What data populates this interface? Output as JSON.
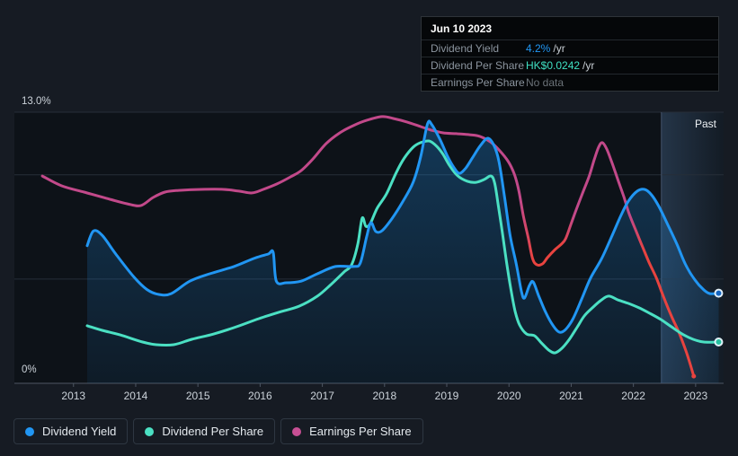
{
  "tooltip": {
    "date": "Jun 10 2023",
    "rows": [
      {
        "label": "Dividend Yield",
        "value": "4.2%",
        "suffix": "/yr",
        "color": "#2196f3"
      },
      {
        "label": "Dividend Per Share",
        "value": "HK$0.0242",
        "suffix": "/yr",
        "color": "#40e0c3"
      },
      {
        "label": "Earnings Per Share",
        "value": "No data",
        "suffix": "",
        "color": "#6b7278"
      }
    ]
  },
  "axis": {
    "y_max_label": "13.0%",
    "y_min_label": "0%",
    "x_ticks": [
      "2013",
      "2014",
      "2015",
      "2016",
      "2017",
      "2018",
      "2019",
      "2020",
      "2021",
      "2022",
      "2023"
    ],
    "past_label": "Past"
  },
  "legend": [
    {
      "label": "Dividend Yield",
      "color": "#2196f3"
    },
    {
      "label": "Dividend Per Share",
      "color": "#4be0c3"
    },
    {
      "label": "Earnings Per Share",
      "color": "#c74f94"
    }
  ],
  "chart_data": {
    "type": "line",
    "x_range": [
      2012.05,
      2023.45
    ],
    "ylim": [
      0,
      13
    ],
    "y_gridlines": [
      13,
      10,
      5,
      0
    ],
    "past_band_start": 2022.45,
    "series": [
      {
        "name": "Dividend Yield",
        "color": "#2196f3",
        "fill": true,
        "end_marker": true,
        "points": [
          [
            2013.22,
            6.6
          ],
          [
            2013.32,
            7.3
          ],
          [
            2013.46,
            7.1
          ],
          [
            2013.68,
            6.2
          ],
          [
            2013.97,
            5.1
          ],
          [
            2014.18,
            4.5
          ],
          [
            2014.37,
            4.26
          ],
          [
            2014.57,
            4.3
          ],
          [
            2014.87,
            4.9
          ],
          [
            2015.19,
            5.25
          ],
          [
            2015.58,
            5.6
          ],
          [
            2015.91,
            6.0
          ],
          [
            2016.13,
            6.2
          ],
          [
            2016.21,
            6.28
          ],
          [
            2016.26,
            4.9
          ],
          [
            2016.42,
            4.82
          ],
          [
            2016.66,
            4.9
          ],
          [
            2016.92,
            5.25
          ],
          [
            2017.21,
            5.6
          ],
          [
            2017.5,
            5.6
          ],
          [
            2017.61,
            5.77
          ],
          [
            2017.71,
            7.0
          ],
          [
            2017.78,
            7.7
          ],
          [
            2017.86,
            7.28
          ],
          [
            2017.96,
            7.32
          ],
          [
            2018.12,
            7.9
          ],
          [
            2018.29,
            8.7
          ],
          [
            2018.46,
            9.64
          ],
          [
            2018.58,
            10.85
          ],
          [
            2018.69,
            12.44
          ],
          [
            2018.76,
            12.4
          ],
          [
            2018.89,
            11.7
          ],
          [
            2019.01,
            10.9
          ],
          [
            2019.11,
            10.37
          ],
          [
            2019.2,
            10.07
          ],
          [
            2019.3,
            10.3
          ],
          [
            2019.41,
            10.8
          ],
          [
            2019.54,
            11.4
          ],
          [
            2019.66,
            11.75
          ],
          [
            2019.76,
            11.4
          ],
          [
            2019.84,
            10.63
          ],
          [
            2019.93,
            8.9
          ],
          [
            2020.02,
            7.06
          ],
          [
            2020.12,
            5.68
          ],
          [
            2020.2,
            4.4
          ],
          [
            2020.25,
            4.09
          ],
          [
            2020.33,
            4.7
          ],
          [
            2020.39,
            4.86
          ],
          [
            2020.48,
            4.18
          ],
          [
            2020.59,
            3.4
          ],
          [
            2020.71,
            2.76
          ],
          [
            2020.81,
            2.45
          ],
          [
            2020.91,
            2.58
          ],
          [
            2021.03,
            3.1
          ],
          [
            2021.17,
            4.05
          ],
          [
            2021.31,
            5.04
          ],
          [
            2021.49,
            5.98
          ],
          [
            2021.66,
            7.1
          ],
          [
            2021.8,
            8.05
          ],
          [
            2021.92,
            8.74
          ],
          [
            2022.06,
            9.21
          ],
          [
            2022.18,
            9.3
          ],
          [
            2022.29,
            9.04
          ],
          [
            2022.41,
            8.48
          ],
          [
            2022.55,
            7.62
          ],
          [
            2022.7,
            6.67
          ],
          [
            2022.84,
            5.68
          ],
          [
            2022.99,
            4.95
          ],
          [
            2023.13,
            4.48
          ],
          [
            2023.23,
            4.3
          ],
          [
            2023.37,
            4.32
          ]
        ]
      },
      {
        "name": "Dividend Per Share",
        "color": "#4be0c3",
        "fill": false,
        "end_marker": true,
        "points": [
          [
            2013.22,
            2.76
          ],
          [
            2013.46,
            2.54
          ],
          [
            2013.75,
            2.32
          ],
          [
            2014.11,
            1.98
          ],
          [
            2014.33,
            1.85
          ],
          [
            2014.61,
            1.85
          ],
          [
            2014.9,
            2.11
          ],
          [
            2015.26,
            2.37
          ],
          [
            2015.62,
            2.71
          ],
          [
            2015.98,
            3.1
          ],
          [
            2016.34,
            3.44
          ],
          [
            2016.63,
            3.7
          ],
          [
            2016.92,
            4.18
          ],
          [
            2017.14,
            4.74
          ],
          [
            2017.35,
            5.34
          ],
          [
            2017.47,
            5.68
          ],
          [
            2017.57,
            6.67
          ],
          [
            2017.64,
            7.92
          ],
          [
            2017.7,
            7.53
          ],
          [
            2017.77,
            7.66
          ],
          [
            2017.88,
            8.39
          ],
          [
            2018.03,
            9.08
          ],
          [
            2018.19,
            10.12
          ],
          [
            2018.32,
            10.81
          ],
          [
            2018.46,
            11.32
          ],
          [
            2018.58,
            11.54
          ],
          [
            2018.72,
            11.62
          ],
          [
            2018.84,
            11.36
          ],
          [
            2018.94,
            10.98
          ],
          [
            2019.05,
            10.42
          ],
          [
            2019.18,
            9.94
          ],
          [
            2019.33,
            9.69
          ],
          [
            2019.47,
            9.64
          ],
          [
            2019.6,
            9.77
          ],
          [
            2019.71,
            9.94
          ],
          [
            2019.77,
            9.6
          ],
          [
            2019.83,
            8.48
          ],
          [
            2019.9,
            7.1
          ],
          [
            2019.96,
            5.81
          ],
          [
            2020.03,
            4.52
          ],
          [
            2020.1,
            3.44
          ],
          [
            2020.17,
            2.8
          ],
          [
            2020.28,
            2.37
          ],
          [
            2020.41,
            2.28
          ],
          [
            2020.52,
            1.94
          ],
          [
            2020.64,
            1.59
          ],
          [
            2020.74,
            1.46
          ],
          [
            2020.85,
            1.68
          ],
          [
            2020.97,
            2.11
          ],
          [
            2021.1,
            2.71
          ],
          [
            2021.21,
            3.23
          ],
          [
            2021.34,
            3.62
          ],
          [
            2021.47,
            3.96
          ],
          [
            2021.6,
            4.18
          ],
          [
            2021.75,
            4.0
          ],
          [
            2021.92,
            3.83
          ],
          [
            2022.09,
            3.62
          ],
          [
            2022.26,
            3.36
          ],
          [
            2022.44,
            3.06
          ],
          [
            2022.61,
            2.71
          ],
          [
            2022.78,
            2.37
          ],
          [
            2022.96,
            2.11
          ],
          [
            2023.13,
            1.98
          ],
          [
            2023.37,
            1.98
          ]
        ]
      },
      {
        "name": "Earnings Per Share",
        "color": "#c2498a",
        "color_negative": "#e8433f",
        "fill": false,
        "end_marker": false,
        "negative_ranges": [
          [
            2020.3,
            2020.92
          ],
          [
            2022.08,
            2023.1
          ]
        ],
        "points": [
          [
            2012.5,
            9.94
          ],
          [
            2012.81,
            9.47
          ],
          [
            2013.17,
            9.17
          ],
          [
            2013.53,
            8.87
          ],
          [
            2013.86,
            8.61
          ],
          [
            2014.08,
            8.52
          ],
          [
            2014.28,
            8.91
          ],
          [
            2014.47,
            9.17
          ],
          [
            2014.69,
            9.25
          ],
          [
            2015.05,
            9.3
          ],
          [
            2015.41,
            9.3
          ],
          [
            2015.67,
            9.21
          ],
          [
            2015.87,
            9.13
          ],
          [
            2016.05,
            9.3
          ],
          [
            2016.27,
            9.56
          ],
          [
            2016.49,
            9.9
          ],
          [
            2016.66,
            10.2
          ],
          [
            2016.85,
            10.76
          ],
          [
            2017.06,
            11.49
          ],
          [
            2017.28,
            12.01
          ],
          [
            2017.5,
            12.36
          ],
          [
            2017.71,
            12.61
          ],
          [
            2017.96,
            12.79
          ],
          [
            2018.14,
            12.7
          ],
          [
            2018.36,
            12.53
          ],
          [
            2018.58,
            12.31
          ],
          [
            2018.75,
            12.14
          ],
          [
            2018.94,
            12.01
          ],
          [
            2019.15,
            11.97
          ],
          [
            2019.37,
            11.92
          ],
          [
            2019.53,
            11.84
          ],
          [
            2019.7,
            11.58
          ],
          [
            2019.84,
            11.19
          ],
          [
            2019.99,
            10.63
          ],
          [
            2020.09,
            9.99
          ],
          [
            2020.16,
            9.21
          ],
          [
            2020.23,
            8.05
          ],
          [
            2020.31,
            6.97
          ],
          [
            2020.38,
            5.98
          ],
          [
            2020.45,
            5.68
          ],
          [
            2020.54,
            5.73
          ],
          [
            2020.62,
            6.03
          ],
          [
            2020.74,
            6.41
          ],
          [
            2020.84,
            6.67
          ],
          [
            2020.91,
            6.93
          ],
          [
            2021.0,
            7.66
          ],
          [
            2021.1,
            8.48
          ],
          [
            2021.2,
            9.25
          ],
          [
            2021.29,
            9.94
          ],
          [
            2021.37,
            10.72
          ],
          [
            2021.44,
            11.32
          ],
          [
            2021.5,
            11.54
          ],
          [
            2021.57,
            11.24
          ],
          [
            2021.65,
            10.63
          ],
          [
            2021.75,
            9.77
          ],
          [
            2021.85,
            8.91
          ],
          [
            2021.93,
            8.14
          ],
          [
            2022.03,
            7.4
          ],
          [
            2022.13,
            6.67
          ],
          [
            2022.25,
            5.81
          ],
          [
            2022.37,
            5.04
          ],
          [
            2022.48,
            4.18
          ],
          [
            2022.61,
            3.23
          ],
          [
            2022.73,
            2.45
          ],
          [
            2022.84,
            1.59
          ],
          [
            2022.91,
            0.95
          ],
          [
            2022.97,
            0.34
          ]
        ]
      }
    ]
  }
}
